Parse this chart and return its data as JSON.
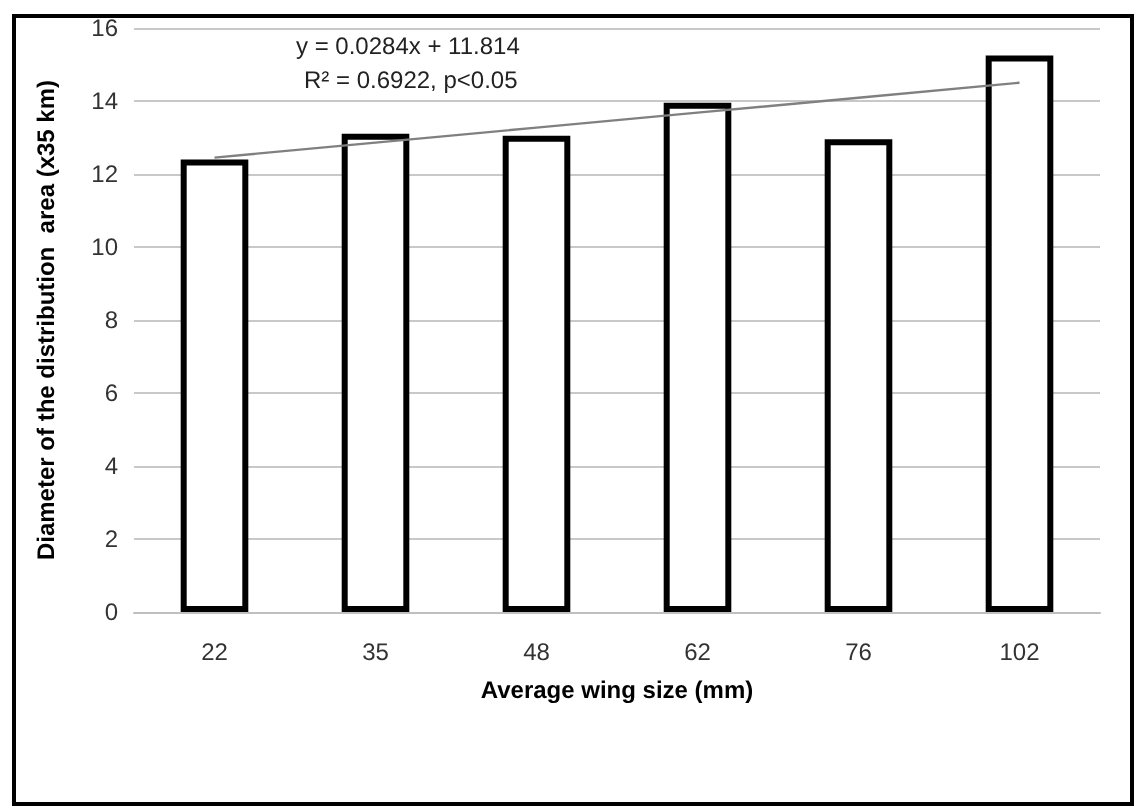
{
  "chart_data": {
    "type": "bar",
    "xlabel": "Average wing size (mm)",
    "ylabel": "Diameter of the distribution  area (x35 km)",
    "categories": [
      "22",
      "35",
      "48",
      "62",
      "76",
      "102"
    ],
    "series": [
      {
        "color": "#ffffff",
        "values": [
          12.4,
          13.1,
          13.05,
          13.95,
          12.95,
          15.25
        ]
      },
      {
        "type": "line",
        "color": "#808080",
        "values": [
          12.45,
          12.86,
          13.27,
          13.68,
          14.09,
          14.5
        ]
      }
    ],
    "ylim": [
      0,
      16
    ],
    "yticks": [
      0,
      2,
      4,
      6,
      8,
      10,
      12,
      14,
      16
    ],
    "grid": "y",
    "marker": "none",
    "line_style": "solid",
    "annotations": [
      "y = 0.0284x + 11.814",
      "R² = 0.6922, p<0.05"
    ]
  }
}
